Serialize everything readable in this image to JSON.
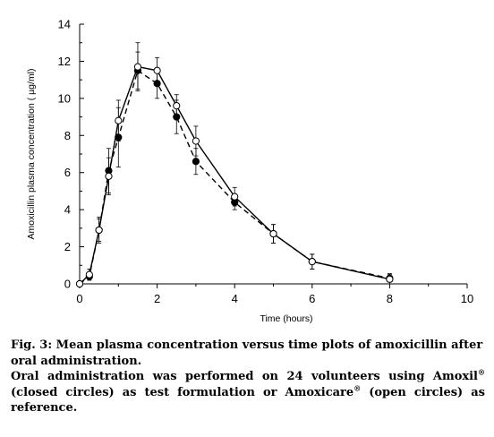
{
  "chart_data": {
    "type": "line",
    "title": "",
    "xlabel": "Time (hours)",
    "ylabel": "Amoxicillin plasma concentration ( µg/ml)",
    "xlim": [
      0,
      10
    ],
    "ylim": [
      0,
      14
    ],
    "x_ticks": [
      "0",
      "2",
      "4",
      "6",
      "8",
      "10"
    ],
    "y_ticks": [
      "0",
      "2",
      "4",
      "6",
      "8",
      "10",
      "12",
      "14"
    ],
    "grid": false,
    "legend": "none",
    "series": [
      {
        "marker": "closed-circle",
        "line": "dashed",
        "x": [
          0,
          0.25,
          0.5,
          0.75,
          1.0,
          1.5,
          2.0,
          2.5,
          3.0,
          4.0,
          5.0,
          6.0,
          8.0
        ],
        "y": [
          0,
          0.4,
          2.9,
          6.1,
          7.9,
          11.5,
          10.8,
          9.0,
          6.6,
          4.4,
          2.7,
          1.2,
          0.3
        ],
        "err": [
          0,
          0.2,
          0.7,
          1.2,
          1.6,
          1.0,
          0.8,
          0.9,
          0.7,
          0.4,
          0.5,
          0.4,
          0.2
        ]
      },
      {
        "marker": "open-circle",
        "line": "solid",
        "x": [
          0,
          0.25,
          0.5,
          0.75,
          1.0,
          1.5,
          2.0,
          2.5,
          3.0,
          4.0,
          5.0,
          6.0,
          8.0
        ],
        "y": [
          0,
          0.5,
          2.9,
          5.8,
          8.8,
          11.7,
          11.5,
          9.6,
          7.7,
          4.7,
          2.7,
          1.2,
          0.25
        ],
        "err": [
          0,
          0.3,
          0.6,
          1.0,
          1.1,
          1.3,
          0.7,
          0.6,
          0.8,
          0.5,
          0.5,
          0.4,
          0.3
        ]
      }
    ]
  },
  "caption": {
    "line1": "Fig. 3: Mean plasma concentration versus time plots of amoxicillin after oral administration.",
    "line2_part1": "Oral administration was performed on 24 volunteers using Amoxil",
    "line2_part2": " (closed circles) as test formulation or Amoxicare",
    "line2_part3": " (open circles) as reference.",
    "registered_mark": "®"
  }
}
